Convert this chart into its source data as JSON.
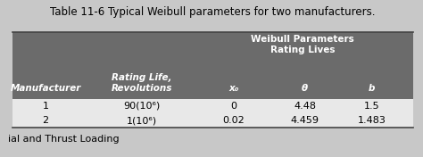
{
  "title": "Table 11-6 Typical Weibull parameters for two manufacturers.",
  "header_bg": "#6b6b6b",
  "header_text_color": "#ffffff",
  "body_bg": "#e8e8e8",
  "outer_bg": "#c8c8c8",
  "col1_header": "Manufacturer",
  "col2_header": "Rating Life,\nRevolutions",
  "col3_header_top": "Weibull Parameters\nRating Lives",
  "col3a_header": "x₀",
  "col3b_header": "θ",
  "col3c_header": "b",
  "rows": [
    {
      "mfr": "1",
      "rating": "90(10⁶)",
      "x0": "0",
      "theta": "4.48",
      "b": "1.5"
    },
    {
      "mfr": "2",
      "rating": "1(10⁶)",
      "x0": "0.02",
      "theta": "4.459",
      "b": "1.483"
    }
  ],
  "footer_text": "ial and Thrust Loading",
  "title_fontsize": 8.5,
  "header_fontsize": 7.5,
  "data_fontsize": 8,
  "footer_fontsize": 8
}
